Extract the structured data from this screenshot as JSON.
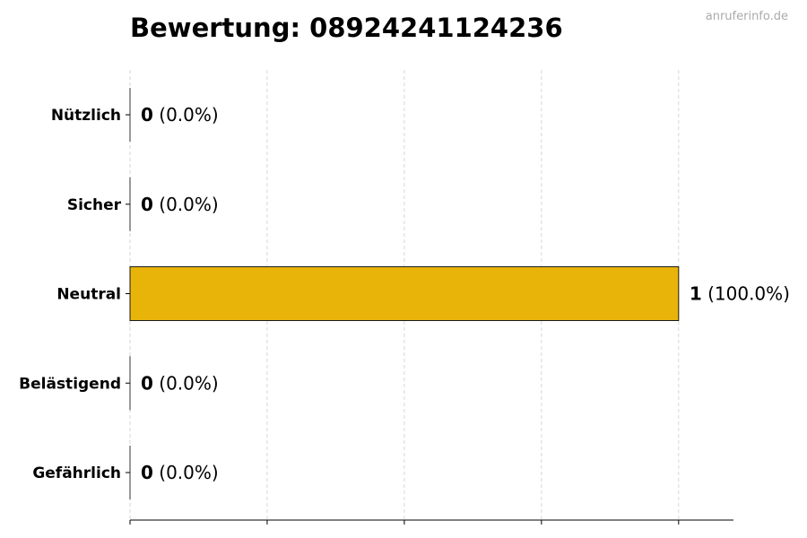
{
  "watermark": "anruferinfo.de",
  "chart_data": {
    "type": "bar",
    "orientation": "horizontal",
    "title": "Bewertung: 08924241124236",
    "categories": [
      "Nützlich",
      "Sicher",
      "Neutral",
      "Belästigend",
      "Gefährlich"
    ],
    "values": [
      0,
      0,
      1,
      0,
      0
    ],
    "value_labels": [
      "0",
      "0",
      "1",
      "0",
      "0"
    ],
    "percent_labels": [
      "(0.0%)",
      "(0.0%)",
      "(100.0%)",
      "(0.0%)",
      "(0.0%)"
    ],
    "xlim": [
      0,
      1.1
    ],
    "xticks": [
      0,
      0.25,
      0.5,
      0.75,
      1.0
    ],
    "xtick_labels_shown": false,
    "grid": "x-dashed",
    "bar_color": "#e8b40a",
    "bar_edge_color": "#1a1a1a",
    "legend": "none"
  }
}
